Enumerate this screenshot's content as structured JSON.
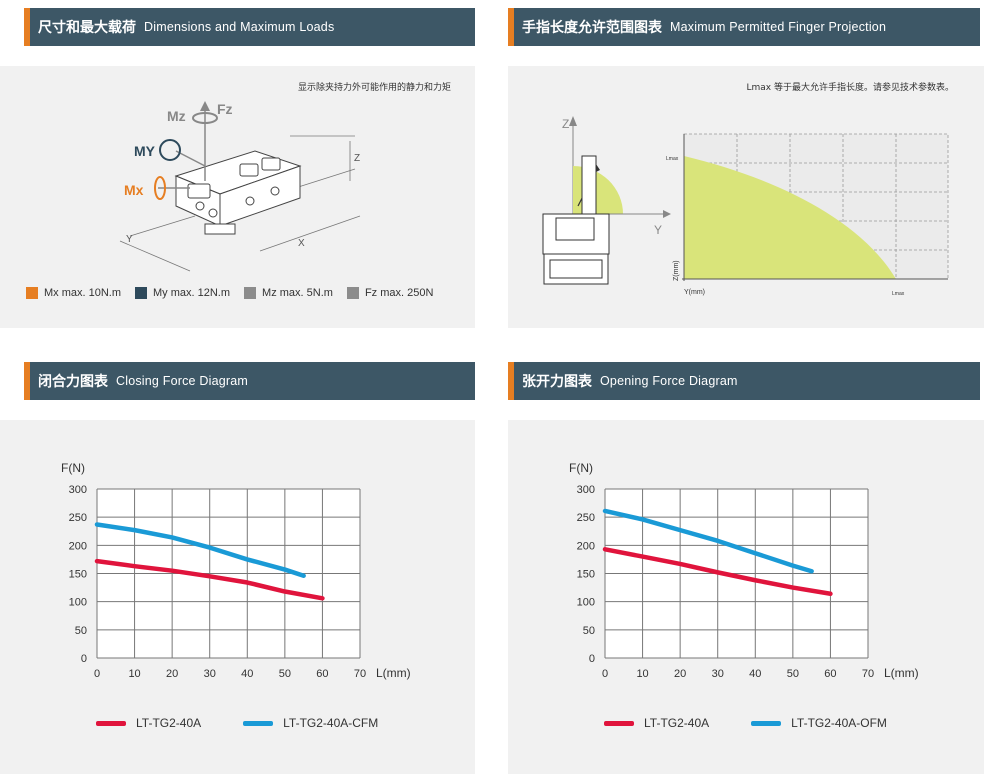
{
  "headers": {
    "dimensions": {
      "zh": "尺寸和最大载荷",
      "en": "Dimensions and Maximum Loads"
    },
    "finger": {
      "zh": "手指长度允许范围图表",
      "en": "Maximum Permitted Finger Projection"
    },
    "closing": {
      "zh": "闭合力图表",
      "en": "Closing Force Diagram"
    },
    "opening": {
      "zh": "张开力图表",
      "en": "Opening Force Diagram"
    }
  },
  "dimensions_panel": {
    "note": "显示除夹持力外可能作用的静力和力矩",
    "labels": {
      "mz": "Mz",
      "fz": "Fz",
      "my": "MY",
      "mx": "Mx",
      "z": "Z",
      "y": "Y",
      "x": "X"
    },
    "legend": [
      {
        "label": "Mx max. 10N.m",
        "color": "#e67e22"
      },
      {
        "label": "My max. 12N.m",
        "color": "#2e4a5c"
      },
      {
        "label": "Mz max. 5N.m",
        "color": "#8c8c8c"
      },
      {
        "label": "Fz max. 250N",
        "color": "#8c8c8c"
      }
    ]
  },
  "finger_panel": {
    "note": "Lmax 等于最大允许手指长度。请参见技术参数表。",
    "axis_z": "Z",
    "axis_y": "Y",
    "lmax_top": "Lmax",
    "lmax_bottom": "Lmax",
    "zmm": "Z(mm)",
    "ymm": "Y(mm)",
    "fill_color": "#d9e47a"
  },
  "closing_chart": {
    "chart_data": {
      "type": "line",
      "ylabel": "F(N)",
      "xlabel": "L(mm)",
      "xlim": [
        0,
        70
      ],
      "ylim": [
        0,
        300
      ],
      "xticks": [
        0,
        10,
        20,
        30,
        40,
        50,
        60,
        70
      ],
      "yticks": [
        0,
        50,
        100,
        150,
        200,
        250,
        300
      ],
      "series": [
        {
          "name": "LT-TG2-40A",
          "color": "#e0143c",
          "x": [
            0,
            10,
            20,
            30,
            40,
            50,
            60
          ],
          "y": [
            172,
            163,
            155,
            145,
            134,
            118,
            106
          ]
        },
        {
          "name": "LT-TG2-40A-CFM",
          "color": "#1a9ad6",
          "x": [
            0,
            10,
            20,
            30,
            40,
            50,
            55
          ],
          "y": [
            237,
            227,
            214,
            196,
            175,
            157,
            146
          ]
        }
      ]
    }
  },
  "opening_chart": {
    "chart_data": {
      "type": "line",
      "ylabel": "F(N)",
      "xlabel": "L(mm)",
      "xlim": [
        0,
        70
      ],
      "ylim": [
        0,
        300
      ],
      "xticks": [
        0,
        10,
        20,
        30,
        40,
        50,
        60,
        70
      ],
      "yticks": [
        0,
        50,
        100,
        150,
        200,
        250,
        300
      ],
      "series": [
        {
          "name": "LT-TG2-40A",
          "color": "#e0143c",
          "x": [
            0,
            10,
            20,
            30,
            40,
            50,
            60
          ],
          "y": [
            193,
            180,
            167,
            152,
            138,
            125,
            114
          ]
        },
        {
          "name": "LT-TG2-40A-OFM",
          "color": "#1a9ad6",
          "x": [
            0,
            10,
            20,
            30,
            40,
            50,
            55
          ],
          "y": [
            261,
            246,
            227,
            208,
            186,
            164,
            154
          ]
        }
      ]
    }
  }
}
